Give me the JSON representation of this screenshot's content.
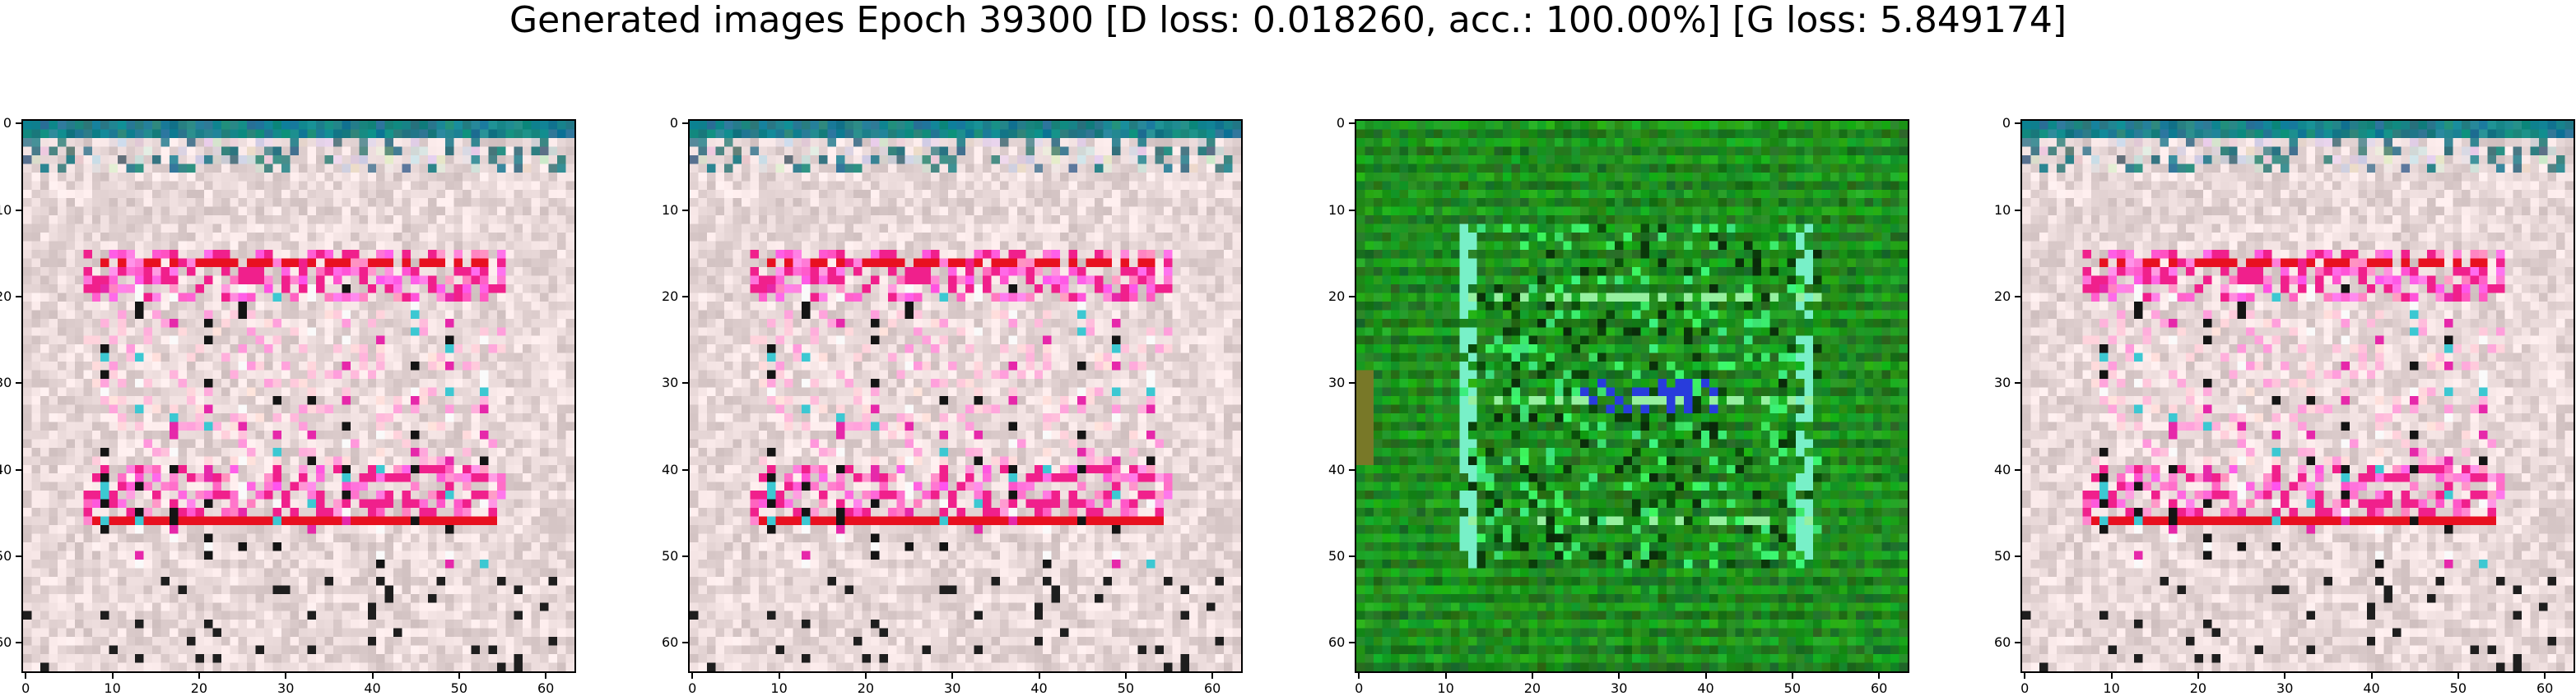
{
  "title": "Generated images Epoch 39300 [D loss: 0.018260, acc.: 100.00%] [G loss: 5.849174]",
  "figure": {
    "image_size": 64,
    "panels": [
      {
        "name": "generated-image-1",
        "palette": "pink-pattern"
      },
      {
        "name": "generated-image-2",
        "palette": "pink-pattern"
      },
      {
        "name": "generated-image-3",
        "palette": "green-pattern"
      },
      {
        "name": "generated-image-4",
        "palette": "pink-pattern"
      }
    ],
    "x_ticks": [
      "0",
      "10",
      "20",
      "30",
      "40",
      "50",
      "60"
    ],
    "y_ticks": [
      "0",
      "10",
      "20",
      "30",
      "40",
      "50",
      "60"
    ]
  },
  "colors": {
    "pink_base": "#e8d8d8",
    "pink_accent": "#f0208c",
    "red_accent": "#e81020",
    "green_base": "#1f8a1f",
    "green_bright": "#3ae65a",
    "teal_top": "#1e7f8c"
  }
}
